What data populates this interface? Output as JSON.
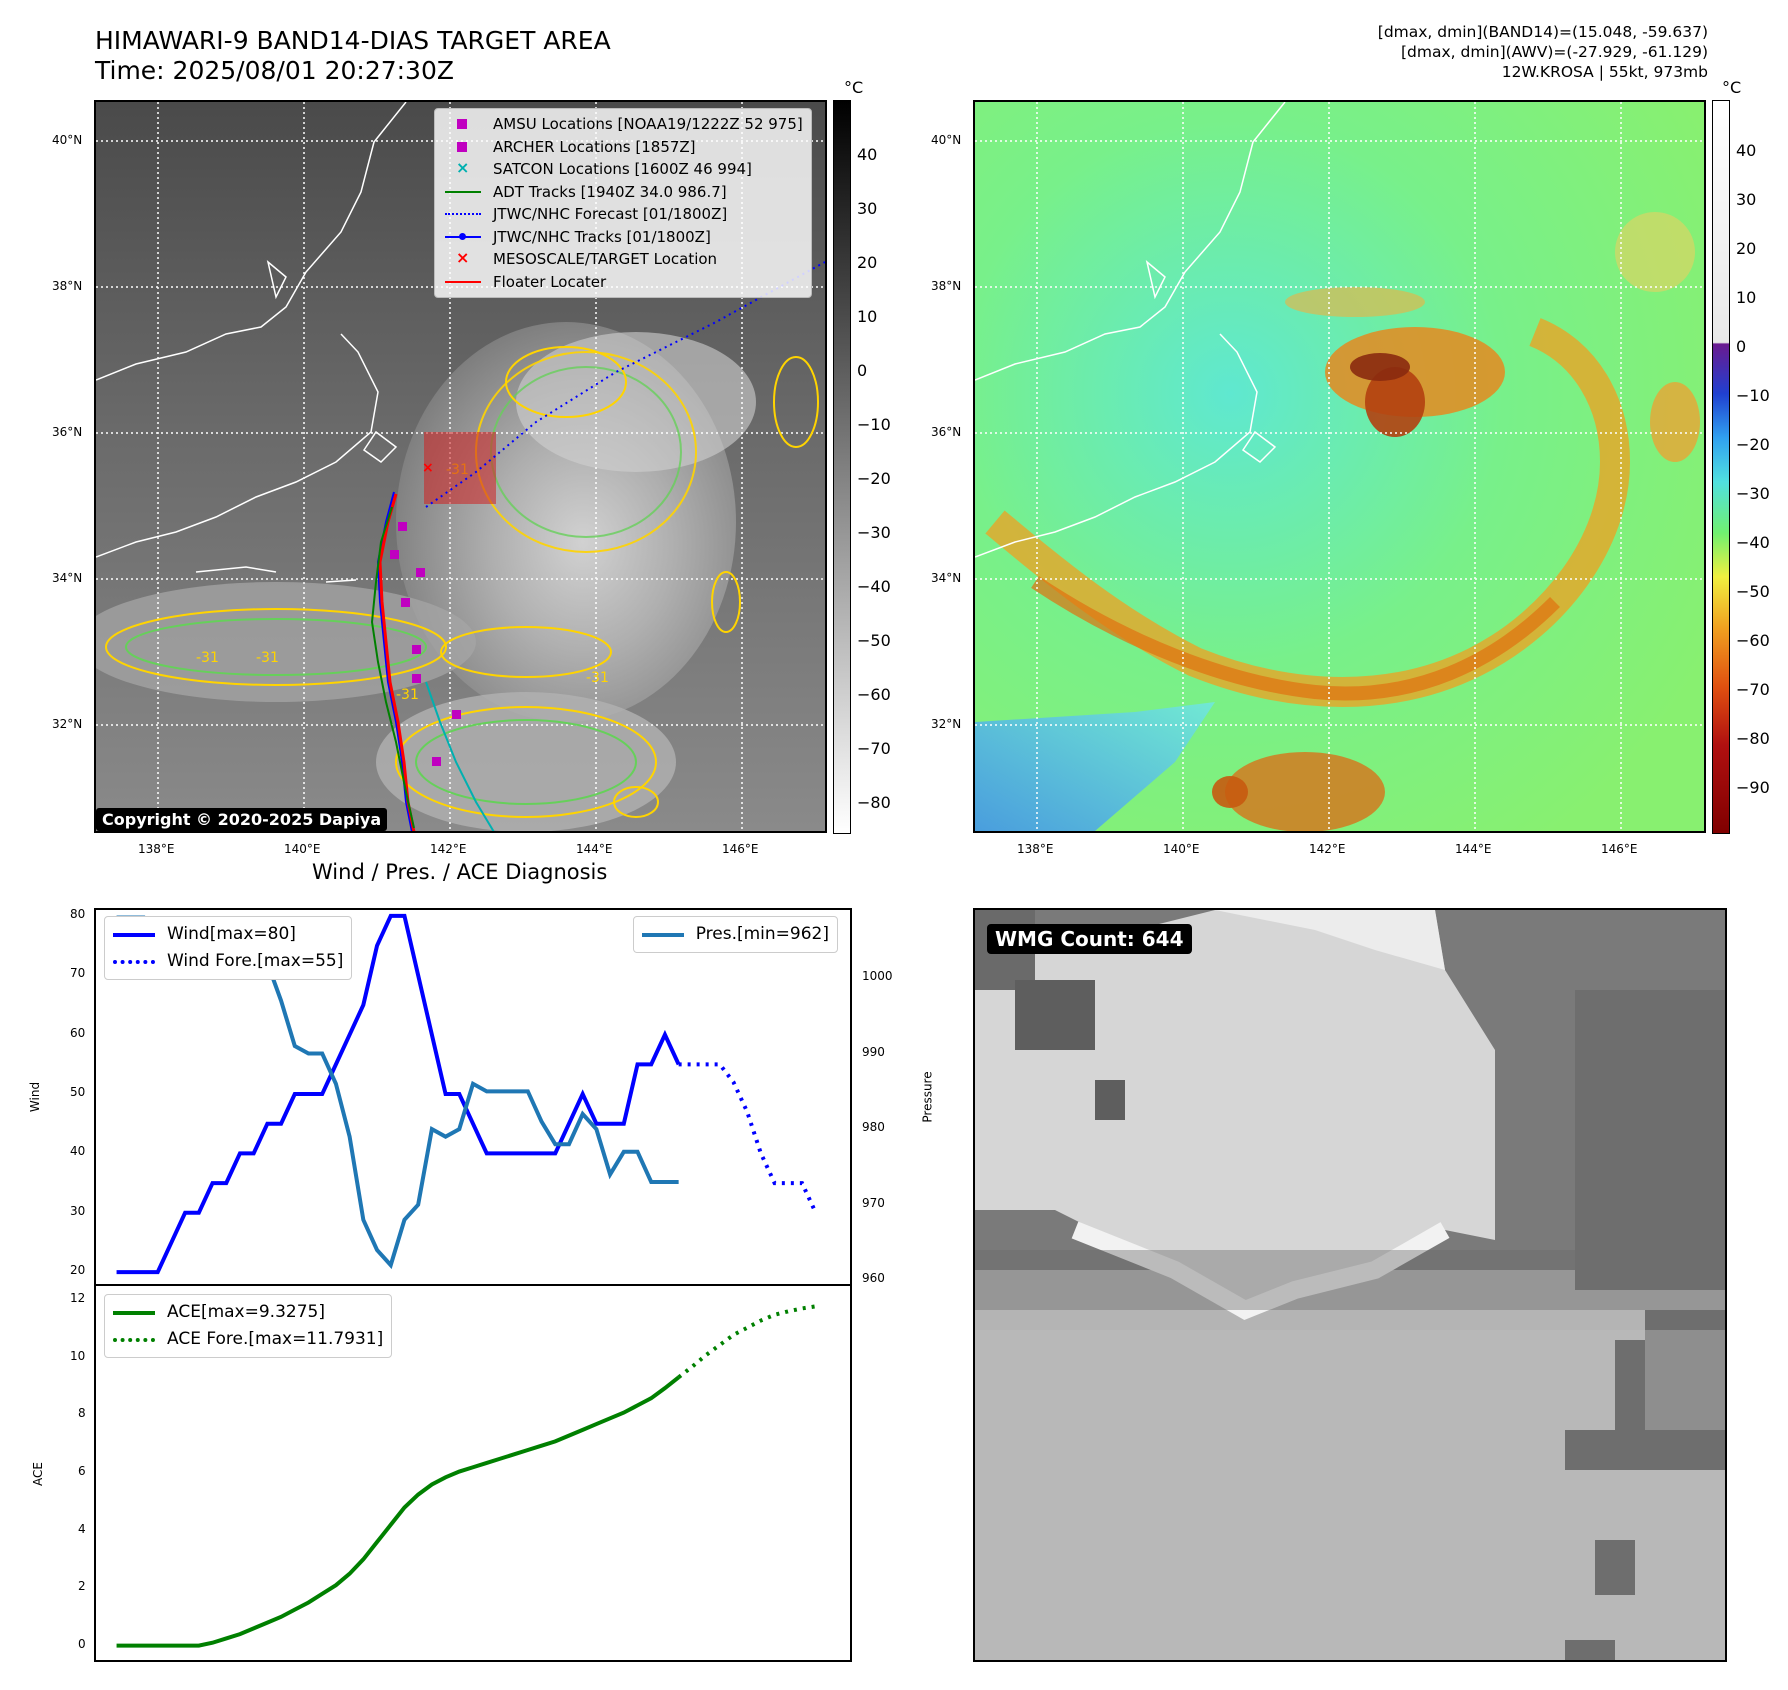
{
  "header": {
    "title_line1": "HIMAWARI-9 BAND14-DIAS TARGET AREA",
    "title_line2": "Time: 2025/08/01 20:27:30Z",
    "info_line1": "[dmax, dmin](BAND14)=(15.048, -59.637)",
    "info_line2": "[dmax, dmin](AWV)=(-27.929, -61.129)",
    "info_line3": "12W.KROSA | 55kt, 973mb"
  },
  "ir_map": {
    "copyright": "Copyright © 2020-2025 Dapiya",
    "lat_labels": [
      "40°N",
      "38°N",
      "36°N",
      "34°N",
      "32°N"
    ],
    "lon_labels": [
      "138°E",
      "140°E",
      "142°E",
      "144°E",
      "146°E"
    ],
    "colorbar_unit": "°C",
    "colorbar_ticks": [
      "40",
      "30",
      "20",
      "10",
      "0",
      "−10",
      "−20",
      "−30",
      "−40",
      "−50",
      "−60",
      "−70",
      "−80"
    ],
    "contour_label": "-31",
    "legend": [
      {
        "label": "AMSU Locations [NOAA19/1222Z 52 975]",
        "symbol": "square",
        "color": "#c000c0"
      },
      {
        "label": "ARCHER Locations [1857Z]",
        "symbol": "square",
        "color": "#c000c0"
      },
      {
        "label": "SATCON Locations [1600Z 46 994]",
        "symbol": "x",
        "color": "#00b0b0"
      },
      {
        "label": "ADT Tracks [1940Z 34.0 986.7]",
        "symbol": "line",
        "color": "#008000"
      },
      {
        "label": "JTWC/NHC Forecast [01/1800Z]",
        "symbol": "dotted",
        "color": "#0000ff"
      },
      {
        "label": "JTWC/NHC Tracks [01/1800Z]",
        "symbol": "line-dot",
        "color": "#0000ff"
      },
      {
        "label": "MESOSCALE/TARGET Location",
        "symbol": "x",
        "color": "#ff0000"
      },
      {
        "label": "Floater Locater",
        "symbol": "line",
        "color": "#ff0000"
      }
    ]
  },
  "awv_map": {
    "lat_labels": [
      "40°N",
      "38°N",
      "36°N",
      "34°N",
      "32°N"
    ],
    "lon_labels": [
      "138°E",
      "140°E",
      "142°E",
      "144°E",
      "146°E"
    ],
    "colorbar_unit": "°C",
    "colorbar_ticks": [
      "40",
      "30",
      "20",
      "10",
      "0",
      "−10",
      "−20",
      "−30",
      "−40",
      "−50",
      "−60",
      "−70",
      "−80",
      "−90"
    ]
  },
  "wmg": {
    "label": "WMG Count: 644"
  },
  "chart_data": [
    {
      "type": "line",
      "title": "Wind / Pres. / ACE Diagnosis",
      "ylabel": "Wind",
      "y2label": "Pressure",
      "ylim": [
        18,
        81
      ],
      "y2lim": [
        959.5,
        1009
      ],
      "yticks": [
        "80",
        "70",
        "60",
        "50",
        "40",
        "30",
        "20"
      ],
      "y2ticks": [
        "1000",
        "990",
        "980",
        "970",
        "960"
      ],
      "series": [
        {
          "name": "Wind[max=80]",
          "color": "#0000ff",
          "style": "solid",
          "axis": "left",
          "x": [
            0,
            1,
            2,
            3,
            4,
            5,
            6,
            7,
            8,
            9,
            10,
            11,
            12,
            13,
            14,
            15,
            16,
            17,
            18,
            19,
            20,
            21,
            22,
            23,
            24,
            25,
            26,
            27,
            28,
            29,
            30,
            31,
            32,
            33,
            34,
            35,
            36,
            37,
            38,
            39,
            40,
            41
          ],
          "values": [
            20,
            20,
            20,
            20,
            25,
            30,
            30,
            35,
            35,
            40,
            40,
            45,
            45,
            50,
            50,
            50,
            55,
            60,
            65,
            75,
            80,
            80,
            70,
            60,
            50,
            50,
            45,
            40,
            40,
            40,
            40,
            40,
            40,
            45,
            50,
            45,
            45,
            45,
            55,
            55,
            60,
            55
          ]
        },
        {
          "name": "Wind Fore.[max=55]",
          "color": "#0000ff",
          "style": "dotted",
          "axis": "left",
          "x": [
            41,
            42,
            43,
            44,
            45,
            46,
            47,
            48,
            49,
            50,
            51
          ],
          "values": [
            55,
            55,
            55,
            55,
            52,
            47,
            40,
            35,
            35,
            35,
            30
          ]
        },
        {
          "name": "Pres.[min=962]",
          "color": "#1f77b4",
          "style": "solid",
          "axis": "right",
          "x": [
            0,
            1,
            2,
            3,
            4,
            5,
            6,
            7,
            8,
            9,
            10,
            11,
            12,
            13,
            14,
            15,
            16,
            17,
            18,
            19,
            20,
            21,
            22,
            23,
            24,
            25,
            26,
            27,
            28,
            29,
            30,
            31,
            32,
            33,
            34,
            35,
            36,
            37,
            38,
            39,
            40,
            41
          ],
          "values": [
            1008,
            1008,
            1008,
            1006,
            1006,
            1005,
            1005,
            1003,
            1003,
            1002,
            1002,
            1002,
            997,
            991,
            990,
            990,
            986,
            979,
            968,
            964,
            962,
            968,
            970,
            980,
            979,
            980,
            986,
            985,
            985,
            985,
            985,
            981,
            978,
            978,
            982,
            980,
            974,
            977,
            977,
            973,
            973,
            973
          ]
        }
      ]
    },
    {
      "type": "line",
      "ylabel": "ACE",
      "ylim": [
        -0.5,
        12.5
      ],
      "yticks": [
        "12",
        "10",
        "8",
        "6",
        "4",
        "2",
        "0"
      ],
      "series": [
        {
          "name": "ACE[max=9.3275]",
          "color": "#008000",
          "style": "solid",
          "x": [
            0,
            1,
            2,
            3,
            4,
            5,
            6,
            7,
            8,
            9,
            10,
            11,
            12,
            13,
            14,
            15,
            16,
            17,
            18,
            19,
            20,
            21,
            22,
            23,
            24,
            25,
            26,
            27,
            28,
            29,
            30,
            31,
            32,
            33,
            34,
            35,
            36,
            37,
            38,
            39,
            40,
            41
          ],
          "values": [
            0,
            0,
            0,
            0,
            0,
            0,
            0,
            0.1,
            0.25,
            0.4,
            0.6,
            0.8,
            1.0,
            1.25,
            1.5,
            1.8,
            2.1,
            2.5,
            3.0,
            3.6,
            4.2,
            4.8,
            5.25,
            5.6,
            5.85,
            6.05,
            6.2,
            6.35,
            6.5,
            6.65,
            6.8,
            6.95,
            7.1,
            7.3,
            7.5,
            7.7,
            7.9,
            8.1,
            8.35,
            8.6,
            8.95,
            9.3275
          ]
        },
        {
          "name": "ACE Fore.[max=11.7931]",
          "color": "#008000",
          "style": "dotted",
          "x": [
            41,
            42,
            43,
            44,
            45,
            46,
            47,
            48,
            49,
            50,
            51
          ],
          "values": [
            9.3275,
            9.7,
            10.1,
            10.45,
            10.8,
            11.05,
            11.3,
            11.5,
            11.62,
            11.72,
            11.7931
          ]
        }
      ]
    }
  ]
}
